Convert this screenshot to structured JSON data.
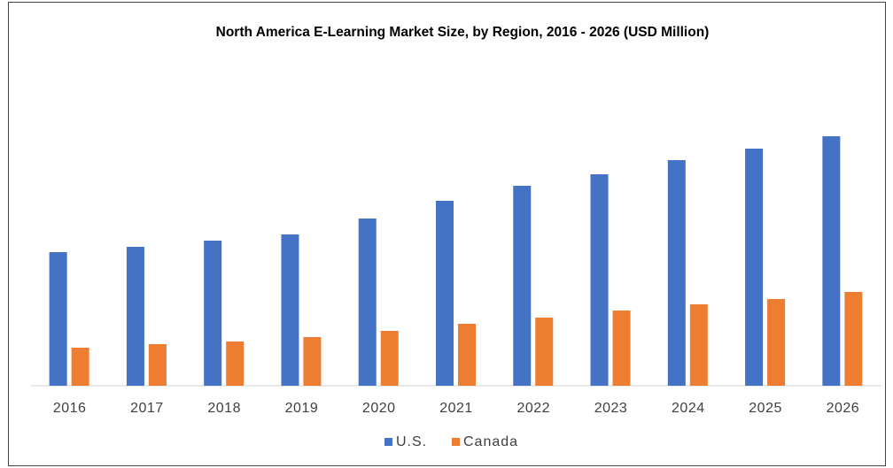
{
  "chart_data": {
    "type": "bar",
    "title": "North America E-Learning Market Size, by Region, 2016 - 2026 (USD Million)",
    "categories": [
      "2016",
      "2017",
      "2018",
      "2019",
      "2020",
      "2021",
      "2022",
      "2023",
      "2024",
      "2025",
      "2026"
    ],
    "series": [
      {
        "name": "U.S.",
        "color": "#4472c4",
        "values": [
          151,
          157,
          164,
          171,
          189,
          209,
          226,
          239,
          255,
          268,
          282
        ]
      },
      {
        "name": "Canada",
        "color": "#ed7d31",
        "values": [
          43,
          47,
          50,
          55,
          62,
          70,
          77,
          85,
          92,
          98,
          106
        ]
      }
    ],
    "ylim": [
      0,
      300
    ]
  }
}
